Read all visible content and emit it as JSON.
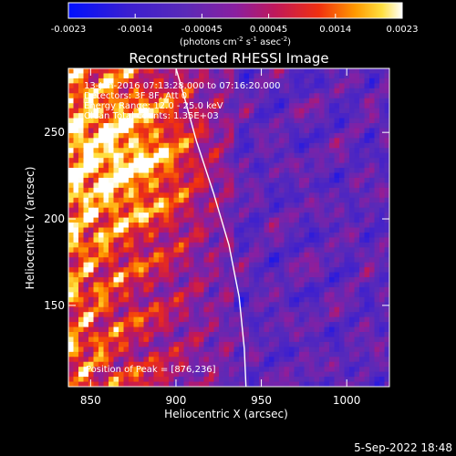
{
  "chart_data": {
    "type": "heatmap",
    "title": "Reconstructed RHESSI Image",
    "xlabel": "Heliocentric X (arcsec)",
    "ylabel": "Heliocentric Y (arcsec)",
    "xlim": [
      837,
      1025
    ],
    "ylim": [
      103,
      287
    ],
    "x_ticks": [
      850,
      900,
      950,
      1000
    ],
    "y_ticks": [
      150,
      200,
      250
    ],
    "colorbar": {
      "range": [
        -0.0023,
        0.0023
      ],
      "ticks": [
        "-0.0023",
        "-0.0014",
        "-0.00045",
        "0.00045",
        "0.0014",
        "0.0023"
      ],
      "units_prefix": "(photons cm",
      "units_exp1": "-2",
      "units_mid1": " s",
      "units_exp2": "-1",
      "units_mid2": " asec",
      "units_exp3": "-2",
      "units_suffix": ")"
    },
    "annotations": {
      "time_range": "13-Jun-2016 07:13:28.000 to 07:16:20.000",
      "detectors": "Detectors: 3F 8F, Att 0",
      "energy_range": "Energy Range: 12.0 - 25.0 keV",
      "method": "Clean     Total counts: 1.35E+03",
      "peak": "Position of Peak = [876,236]"
    },
    "peak_position": [
      876,
      236
    ],
    "limb_curve": [
      [
        900,
        287
      ],
      [
        905,
        270
      ],
      [
        912,
        245
      ],
      [
        922,
        215
      ],
      [
        931,
        185
      ],
      [
        937,
        155
      ],
      [
        940,
        125
      ],
      [
        941,
        103
      ]
    ],
    "colors": {
      "background": "#000000",
      "axis": "#ffffff",
      "limb": "#ffffff"
    }
  },
  "footer": {
    "date": "5-Sep-2022 18:48"
  }
}
